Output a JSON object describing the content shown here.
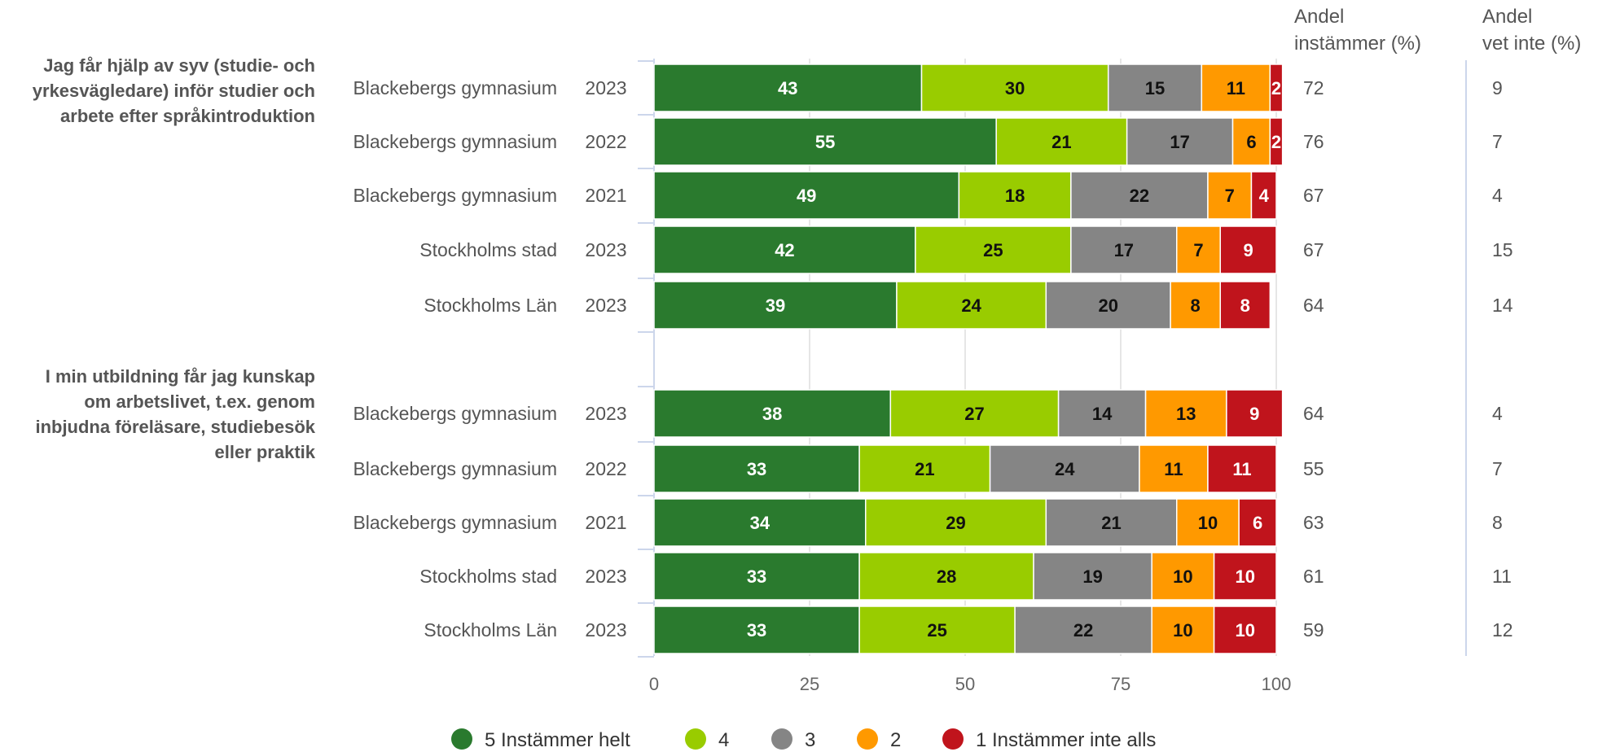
{
  "chart_data": {
    "type": "bar",
    "orientation": "horizontal",
    "stacked": true,
    "xlim": [
      0,
      100
    ],
    "x_ticks": [
      "0",
      "25",
      "50",
      "75",
      "100"
    ],
    "grid": true,
    "legend_position": "bottom",
    "columns": {
      "agree_header": [
        "Andel",
        "instämmer (%)"
      ],
      "dontknow_header": [
        "Andel",
        "vet inte (%)"
      ]
    },
    "series": [
      {
        "name": "5 Instämmer helt",
        "color": "#2a7a2e",
        "label_color": "#ffffff"
      },
      {
        "name": "4",
        "color": "#99cc00",
        "label_color": "#111111"
      },
      {
        "name": "3",
        "color": "#858585",
        "label_color": "#111111"
      },
      {
        "name": "2",
        "color": "#ff9900",
        "label_color": "#111111"
      },
      {
        "name": "1 Instämmer inte alls",
        "color": "#c0141c",
        "label_color": "#ffffff"
      }
    ],
    "groups": [
      {
        "title": [
          "Jag får hjälp av syv (studie- och",
          "yrkesvägledare) inför studier och",
          "arbete efter språkintroduktion"
        ],
        "rows": [
          {
            "name": "Blackebergs gymnasium",
            "year": "2023",
            "values": [
              43,
              30,
              15,
              11,
              2
            ],
            "agree": "72",
            "dontknow": "9"
          },
          {
            "name": "Blackebergs gymnasium",
            "year": "2022",
            "values": [
              55,
              21,
              17,
              6,
              2
            ],
            "agree": "76",
            "dontknow": "7"
          },
          {
            "name": "Blackebergs gymnasium",
            "year": "2021",
            "values": [
              49,
              18,
              22,
              7,
              4
            ],
            "agree": "67",
            "dontknow": "4"
          },
          {
            "name": "Stockholms stad",
            "year": "2023",
            "values": [
              42,
              25,
              17,
              7,
              9
            ],
            "agree": "67",
            "dontknow": "15"
          },
          {
            "name": "Stockholms Län",
            "year": "2023",
            "values": [
              39,
              24,
              20,
              8,
              8
            ],
            "agree": "64",
            "dontknow": "14"
          }
        ]
      },
      {
        "title": [
          "I min utbildning får jag kunskap",
          "om arbetslivet, t.ex. genom",
          "inbjudna föreläsare, studiebesök",
          "eller praktik"
        ],
        "rows": [
          {
            "name": "Blackebergs gymnasium",
            "year": "2023",
            "values": [
              38,
              27,
              14,
              13,
              9
            ],
            "agree": "64",
            "dontknow": "4"
          },
          {
            "name": "Blackebergs gymnasium",
            "year": "2022",
            "values": [
              33,
              21,
              24,
              11,
              11
            ],
            "agree": "55",
            "dontknow": "7"
          },
          {
            "name": "Blackebergs gymnasium",
            "year": "2021",
            "values": [
              34,
              29,
              21,
              10,
              6
            ],
            "agree": "63",
            "dontknow": "8"
          },
          {
            "name": "Stockholms stad",
            "year": "2023",
            "values": [
              33,
              28,
              19,
              10,
              10
            ],
            "agree": "61",
            "dontknow": "11"
          },
          {
            "name": "Stockholms Län",
            "year": "2023",
            "values": [
              33,
              25,
              22,
              10,
              10
            ],
            "agree": "59",
            "dontknow": "12"
          }
        ]
      }
    ]
  }
}
